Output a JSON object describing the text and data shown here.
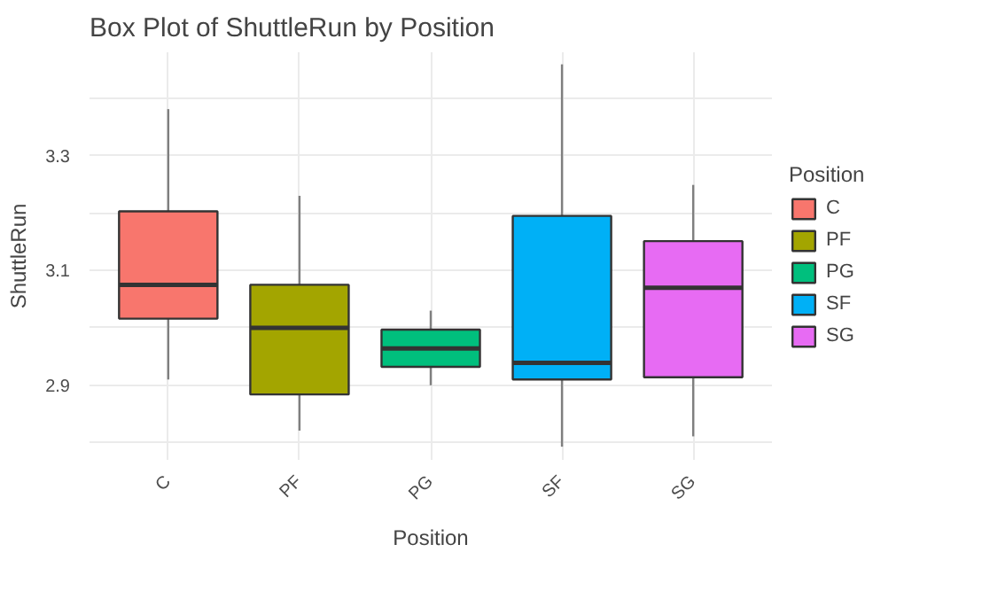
{
  "chart_data": {
    "type": "box",
    "title": "Box Plot of ShuttleRun by Position",
    "xlabel": "Position",
    "ylabel": "ShuttleRun",
    "legend_title": "Position",
    "categories": [
      "C",
      "PF",
      "PG",
      "SF",
      "SG"
    ],
    "series": [
      {
        "name": "C",
        "color": "#f8766d",
        "x": [
          "C"
        ],
        "boxes": [
          {
            "low": 2.91,
            "q1": 3.016,
            "median": 3.075,
            "q3": 3.203,
            "high": 3.381
          }
        ]
      },
      {
        "name": "PF",
        "color": "#a3a500",
        "x": [
          "PF"
        ],
        "boxes": [
          {
            "low": 2.821,
            "q1": 2.884,
            "median": 3.0,
            "q3": 3.075,
            "high": 3.23
          }
        ]
      },
      {
        "name": "PG",
        "color": "#00bf7d",
        "x": [
          "PG"
        ],
        "boxes": [
          {
            "low": 2.9,
            "q1": 2.932,
            "median": 2.964,
            "q3": 2.997,
            "high": 3.03
          }
        ]
      },
      {
        "name": "SF",
        "color": "#00b0f6",
        "x": [
          "SF"
        ],
        "boxes": [
          {
            "low": 2.793,
            "q1": 2.91,
            "median": 2.939,
            "q3": 3.195,
            "high": 3.459
          }
        ]
      },
      {
        "name": "SG",
        "color": "#e76bf3",
        "x": [
          "SG"
        ],
        "boxes": [
          {
            "low": 2.811,
            "q1": 2.914,
            "median": 3.07,
            "q3": 3.151,
            "high": 3.249
          }
        ]
      }
    ],
    "ylim": [
      2.77,
      3.48
    ],
    "yticks": [
      {
        "value": 2.8,
        "label": null
      },
      {
        "value": 2.9,
        "label": "2.9"
      },
      {
        "value": 3.0,
        "label": null
      },
      {
        "value": 3.1,
        "label": "3.1"
      },
      {
        "value": 3.2,
        "label": null
      },
      {
        "value": 3.3,
        "label": "3.3"
      },
      {
        "value": 3.4,
        "label": null
      }
    ],
    "grid": true,
    "legend": "right"
  }
}
